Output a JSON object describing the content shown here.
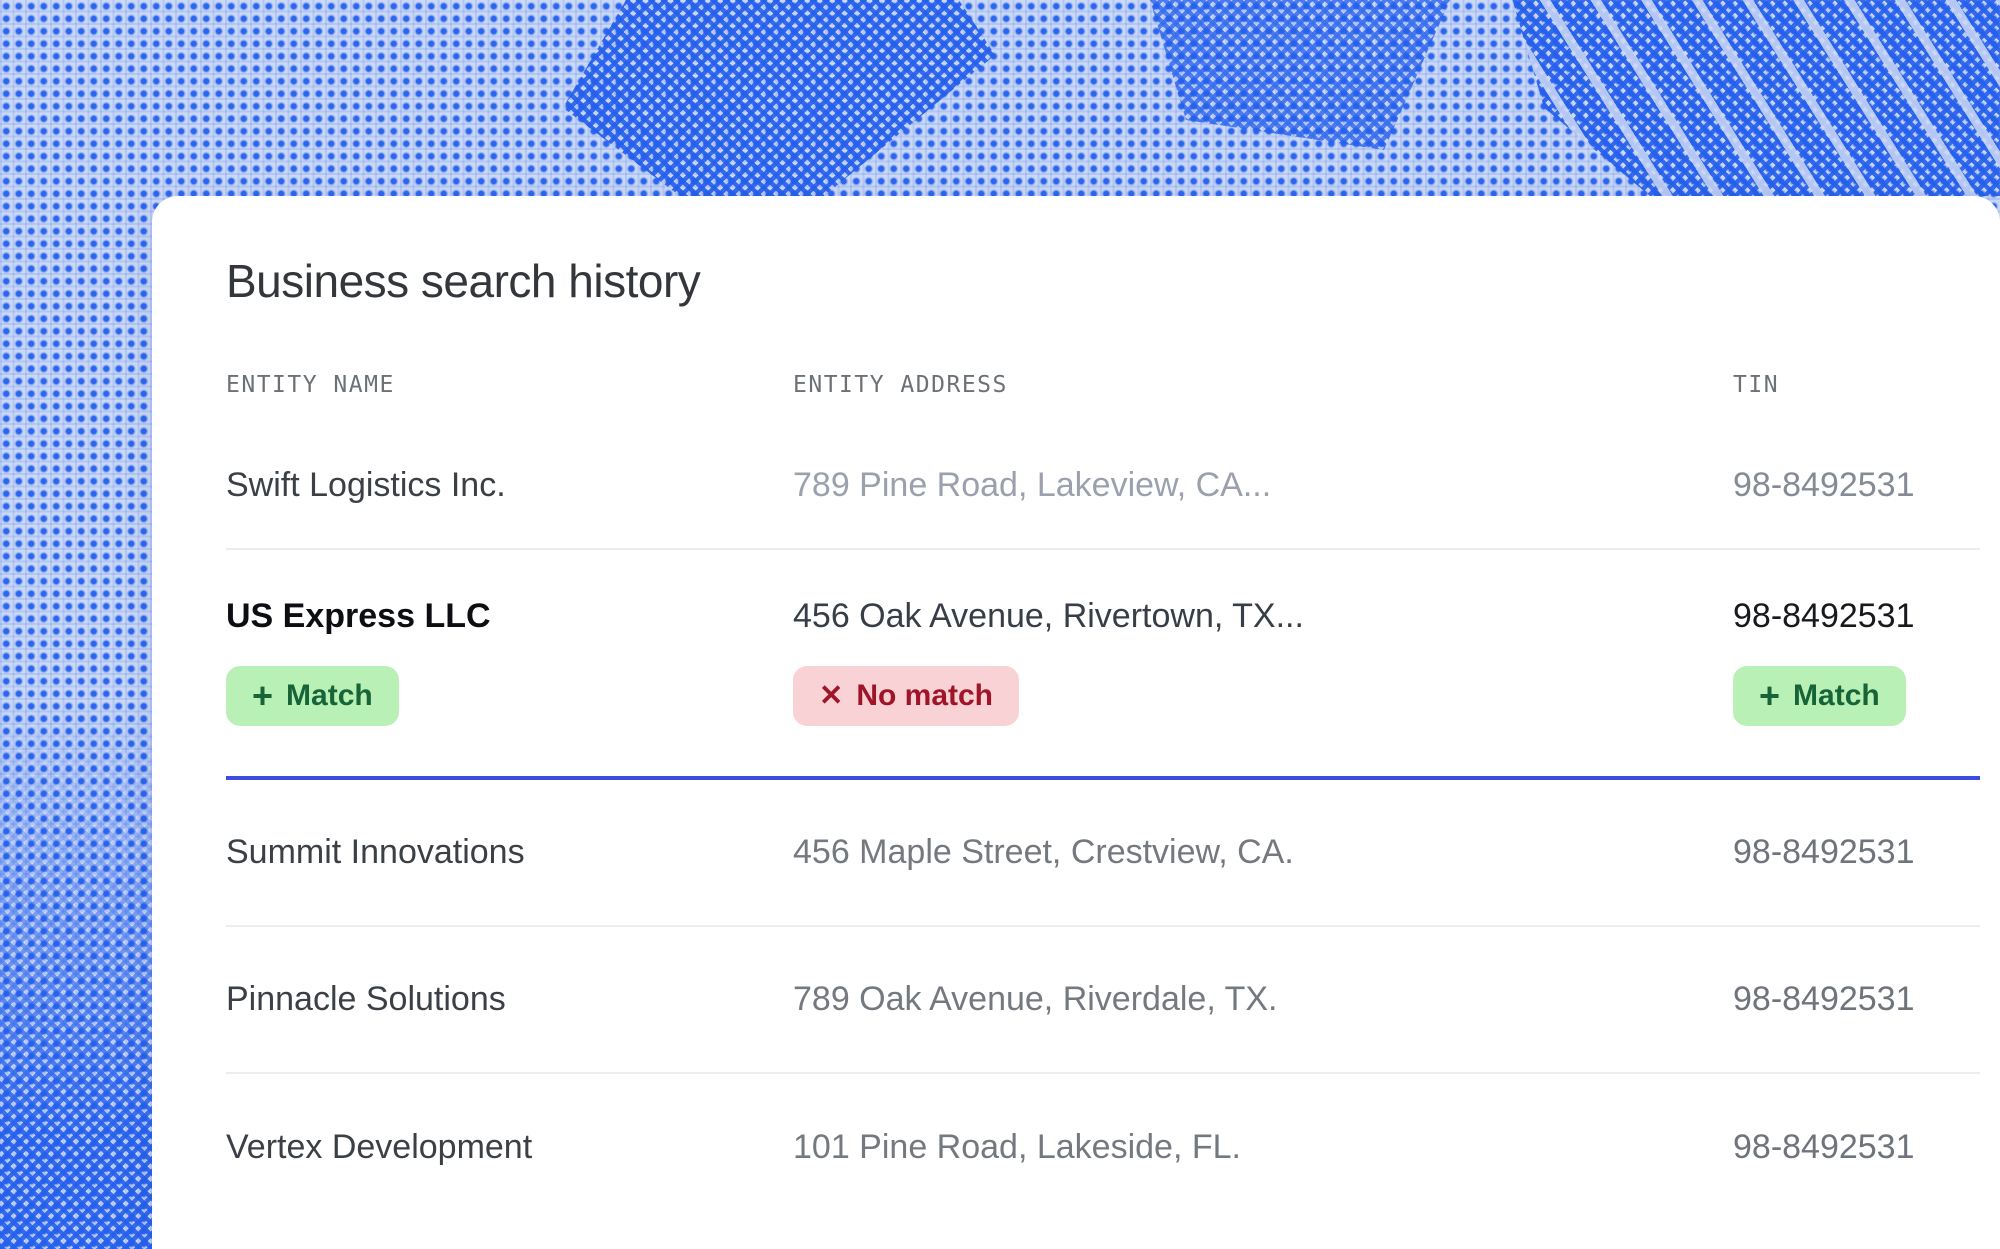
{
  "page": {
    "title": "Business search history"
  },
  "table": {
    "columns": [
      {
        "label": "ENTITY NAME"
      },
      {
        "label": "ENTITY ADDRESS"
      },
      {
        "label": "TIN"
      }
    ],
    "rows": [
      {
        "name": "Swift Logistics Inc.",
        "address": "789 Pine Road, Lakeview, CA...",
        "tin": "98-8492531"
      },
      {
        "name": "US Express LLC",
        "address": "456 Oak Avenue, Rivertown, TX...",
        "tin": "98-8492531",
        "badges": {
          "name": "Match",
          "address": "No match",
          "tin": "Match"
        }
      },
      {
        "name": "Summit Innovations",
        "address": "456 Maple Street, Crestview, CA.",
        "tin": "98-8492531"
      },
      {
        "name": "Pinnacle Solutions",
        "address": "789 Oak Avenue, Riverdale, TX.",
        "tin": "98-8492531"
      },
      {
        "name": "Vertex Development",
        "address": "101 Pine Road, Lakeside, FL.",
        "tin": "98-8492531"
      }
    ]
  },
  "icons": {
    "plus": "+",
    "x": "✕"
  },
  "colors": {
    "accent_blue_divider": "#3c4ce2",
    "match_badge_bg": "#b9f0b6",
    "match_badge_text": "#166437",
    "no_match_badge_bg": "#f8d2d4",
    "no_match_badge_text": "#9f1428",
    "background_blue": "#2d66ee",
    "background_base": "#ccd9f4",
    "card_bg": "#ffffff"
  }
}
